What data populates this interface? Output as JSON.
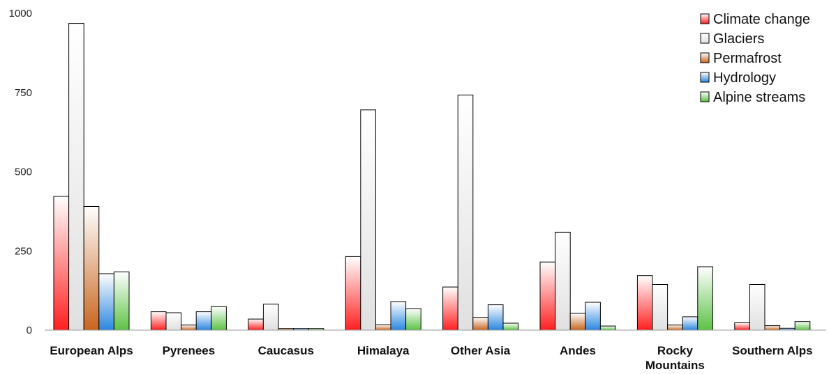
{
  "chart_data": {
    "type": "bar",
    "categories": [
      "European Alps",
      "Pyrenees",
      "Caucasus",
      "Himalaya",
      "Other Asia",
      "Andes",
      "Rocky Mountains",
      "Southern Alps"
    ],
    "category_lines": [
      [
        "European Alps"
      ],
      [
        "Pyrenees"
      ],
      [
        "Caucasus"
      ],
      [
        "Himalaya"
      ],
      [
        "Other Asia"
      ],
      [
        "Andes"
      ],
      [
        "Rocky",
        "Mountains"
      ],
      [
        "Southern Alps"
      ]
    ],
    "series": [
      {
        "name": "Climate change",
        "color": "#ff2020",
        "values": [
          422,
          58,
          35,
          232,
          136,
          215,
          172,
          23
        ]
      },
      {
        "name": "Glaciers",
        "color": "#e0e0e0",
        "values": [
          968,
          55,
          82,
          695,
          742,
          309,
          144,
          144
        ]
      },
      {
        "name": "Permafrost",
        "color": "#c8651e",
        "values": [
          390,
          16,
          5,
          17,
          40,
          53,
          16,
          14
        ]
      },
      {
        "name": "Hydrology",
        "color": "#2a86e0",
        "values": [
          178,
          58,
          5,
          90,
          80,
          88,
          42,
          6
        ]
      },
      {
        "name": "Alpine streams",
        "color": "#5cc245",
        "values": [
          184,
          74,
          5,
          68,
          22,
          13,
          200,
          27
        ]
      }
    ],
    "yticks": [
      0,
      250,
      500,
      750,
      1000
    ],
    "ylim": [
      0,
      1000
    ],
    "title": "",
    "xlabel": "",
    "ylabel": "",
    "grid": false,
    "legend_position": "top-right"
  }
}
